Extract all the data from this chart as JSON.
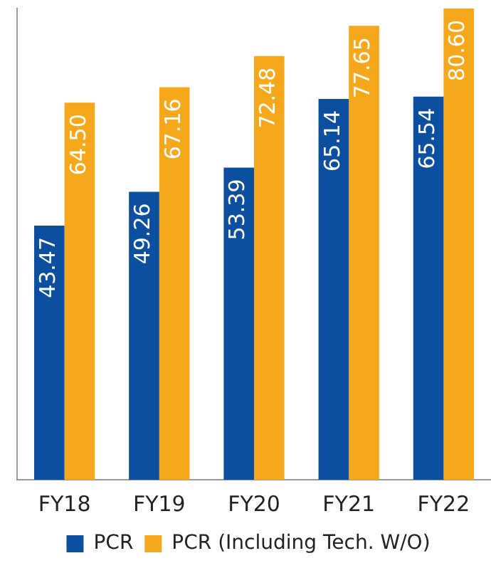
{
  "chart_data": {
    "type": "bar",
    "categories": [
      "FY18",
      "FY19",
      "FY20",
      "FY21",
      "FY22"
    ],
    "series": [
      {
        "name": "PCR",
        "color": "#0b4f9e",
        "values": [
          43.47,
          49.26,
          53.39,
          65.14,
          65.54
        ],
        "value_labels": [
          "43.47",
          "49.26",
          "53.39",
          "65.14",
          "65.54"
        ]
      },
      {
        "name": "PCR (Including Tech. W/O)",
        "color": "#f6a81c",
        "values": [
          64.5,
          67.16,
          72.48,
          77.65,
          80.6
        ],
        "value_labels": [
          "64.50",
          "67.16",
          "72.48",
          "77.65",
          "80.60"
        ]
      }
    ],
    "legend": "bottom",
    "grid": false
  }
}
